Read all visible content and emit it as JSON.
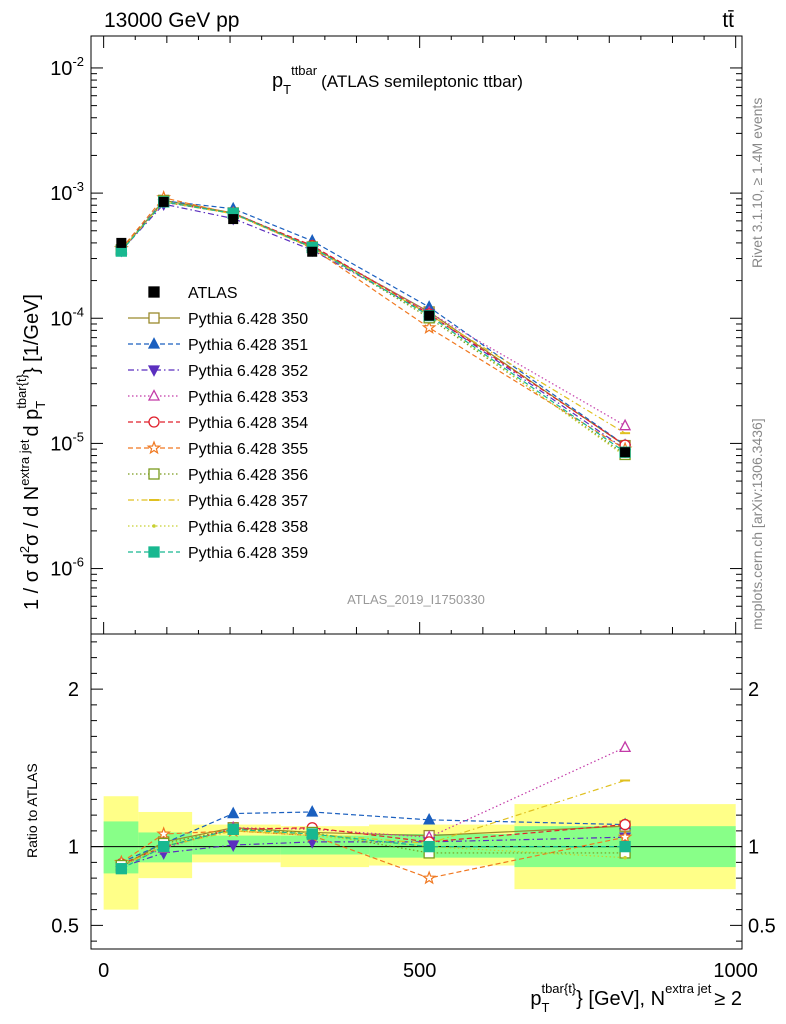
{
  "header": {
    "left": "13000 GeV pp",
    "right": "tt̄"
  },
  "side_labels": {
    "rivet": "Rivet 3.1.10, ≥ 1.4M events",
    "mcplots": "mcplots.cern.ch [arXiv:1306.3436]"
  },
  "chart_data": {
    "type": "line",
    "title": {
      "main": "p",
      "sub": "T",
      "sup": "ttbar",
      "rest": "(ATLAS semileptonic ttbar)"
    },
    "watermark": "ATLAS_2019_I1750330",
    "xlabel": {
      "main": "p",
      "sub": "T",
      "sup": "tbar{t}",
      "rest": "} [GeV], N",
      "sup2": "extra jet",
      "rest2": "≥ 2"
    },
    "ylabel": {
      "part1": "1 / σ d",
      "sup1": "2",
      "part2": "σ / d N",
      "sup2": "extra jet",
      "part3": "d p",
      "sub3": "T",
      "sup3": "tbar{t}",
      "part4": "} [1/GeV]"
    },
    "ratio_ylabel": "Ratio to ATLAS",
    "x_range": [
      -20,
      1010
    ],
    "y_range_log": [
      3e-07,
      0.018
    ],
    "ratio_range": [
      0.35,
      2.35
    ],
    "x_ticks": [
      0,
      500,
      1000
    ],
    "y_ticks": [
      {
        "value": 0.01,
        "base": "10",
        "exp": "-2"
      },
      {
        "value": 0.001,
        "base": "10",
        "exp": "-3"
      },
      {
        "value": 0.0001,
        "base": "10",
        "exp": "-4"
      },
      {
        "value": 1e-05,
        "base": "10",
        "exp": "-5"
      },
      {
        "value": 1e-06,
        "base": "10",
        "exp": "-6"
      }
    ],
    "ratio_ticks": [
      {
        "value": 0.5,
        "label": "0.5"
      },
      {
        "value": 1,
        "label": "1"
      },
      {
        "value": 2,
        "label": "2"
      }
    ],
    "bins": [
      [
        0,
        55
      ],
      [
        55,
        140
      ],
      [
        140,
        280
      ],
      [
        280,
        420
      ],
      [
        420,
        650
      ],
      [
        650,
        1000
      ]
    ],
    "x": [
      28,
      95,
      205,
      330,
      515,
      825
    ],
    "data": {
      "name": "ATLAS",
      "color": "#000000",
      "values": [
        0.0004,
        0.00085,
        0.00062,
        0.00034,
        0.000105,
        8.5e-06
      ],
      "band_stat": [
        [
          0.83,
          1.16
        ],
        [
          0.9,
          1.09
        ],
        [
          0.95,
          1.07
        ],
        [
          0.95,
          1.07
        ],
        [
          0.93,
          1.08
        ],
        [
          0.87,
          1.13
        ]
      ],
      "band_total": [
        [
          0.6,
          1.32
        ],
        [
          0.8,
          1.22
        ],
        [
          0.9,
          1.14
        ],
        [
          0.87,
          1.13
        ],
        [
          0.88,
          1.14
        ],
        [
          0.73,
          1.27
        ]
      ]
    },
    "series": [
      {
        "name": "Pythia 6.428 350",
        "color": "#9a8a2c",
        "dash": "",
        "marker": "square-open",
        "ratio": [
          0.87,
          1.03,
          1.12,
          1.09,
          1.07,
          1.13
        ]
      },
      {
        "name": "Pythia 6.428 351",
        "color": "#1a5fbf",
        "dash": "5,3",
        "marker": "triangle-up-filled",
        "ratio": [
          0.9,
          1.02,
          1.21,
          1.22,
          1.17,
          1.14
        ]
      },
      {
        "name": "Pythia 6.428 352",
        "color": "#5b2fbf",
        "dash": "6,3,1.5,3",
        "marker": "triangle-down-filled",
        "ratio": [
          0.87,
          0.96,
          1.01,
          1.03,
          1.03,
          1.06
        ]
      },
      {
        "name": "Pythia 6.428 353",
        "color": "#c33aa8",
        "dash": "1.5,2.5",
        "marker": "triangle-up-open",
        "ratio": [
          0.88,
          0.99,
          1.12,
          1.11,
          1.06,
          1.63
        ]
      },
      {
        "name": "Pythia 6.428 354",
        "color": "#e0202c",
        "dash": "5,3",
        "marker": "circle-open",
        "ratio": [
          0.89,
          1.0,
          1.11,
          1.12,
          1.03,
          1.14
        ]
      },
      {
        "name": "Pythia 6.428 355",
        "color": "#f07820",
        "dash": "5,3",
        "marker": "star-open",
        "ratio": [
          0.9,
          1.08,
          1.1,
          1.07,
          0.8,
          1.06
        ]
      },
      {
        "name": "Pythia 6.428 356",
        "color": "#7a9a1c",
        "dash": "1.5,2.5",
        "marker": "square-open",
        "ratio": [
          0.88,
          1.02,
          1.11,
          1.09,
          0.96,
          0.96
        ]
      },
      {
        "name": "Pythia 6.428 357",
        "color": "#e0c020",
        "dash": "6,3,1.5,3",
        "marker": "dash",
        "ratio": [
          0.88,
          1.0,
          1.1,
          1.08,
          1.02,
          1.42
        ]
      },
      {
        "name": "Pythia 6.428 358",
        "color": "#c8d030",
        "dash": "1.5,2.5",
        "marker": "dot",
        "ratio": [
          0.87,
          1.01,
          1.1,
          1.07,
          1.0,
          0.93
        ]
      },
      {
        "name": "Pythia 6.428 359",
        "color": "#18b890",
        "dash": "5,3",
        "marker": "square-filled",
        "ratio": [
          0.86,
          1.0,
          1.11,
          1.08,
          1.0,
          1.0
        ]
      }
    ]
  }
}
